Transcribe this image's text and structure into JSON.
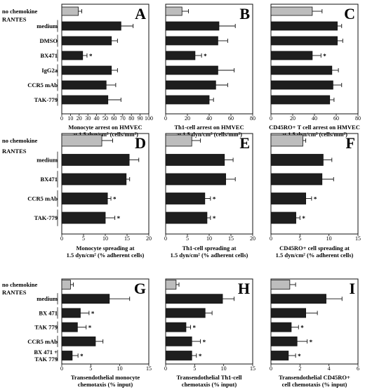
{
  "figure": {
    "colors": {
      "control_bar": "#bdbdbd",
      "treatment_bar": "#1e1e1e",
      "axis": "#111111"
    },
    "group_label": "RANTES",
    "rows": [
      {
        "categories": [
          "no chemokine",
          "medium",
          "DMSO",
          "BX471",
          "IgG2a",
          "CCR5 mAb",
          "TAK-779"
        ],
        "panels": [
          {
            "letter": "A",
            "xlim": [
              0,
              100
            ],
            "ticks": [
              "0",
              "10",
              "20",
              "30",
              "40",
              "50",
              "60",
              "70",
              "80",
              "90",
              "100"
            ],
            "xlabel": [
              "Monocyte arrest on HMVEC",
              "at 1.5 dyn/cm² (cells/mm²)"
            ]
          },
          {
            "letter": "B",
            "xlim": [
              0,
              80
            ],
            "ticks": [
              "0",
              "20",
              "40",
              "60",
              "80"
            ],
            "xlabel": [
              "Th1-cell arrest on HMVEC",
              "at 1.5 dyn/cm² (cells/mm²)"
            ]
          },
          {
            "letter": "C",
            "xlim": [
              0,
              80
            ],
            "ticks": [
              "0",
              "20",
              "40",
              "60",
              "80"
            ],
            "xlabel": [
              "CD45RO+ T cell arrest on HMVEC",
              "at 1.5 dyn/cm² (cells/mm²)"
            ]
          }
        ]
      },
      {
        "categories": [
          "no chemokine",
          "medium",
          "BX471",
          "CCR5 mAb",
          "TAK-779"
        ],
        "panels": [
          {
            "letter": "D",
            "xlim": [
              0,
              20
            ],
            "ticks": [
              "0",
              "5",
              "10",
              "15",
              "20"
            ],
            "xlabel": [
              "Monocyte spreading at",
              "1.5 dyn/cm² (% adherent cells)"
            ]
          },
          {
            "letter": "E",
            "xlim": [
              0,
              20
            ],
            "ticks": [
              "0",
              "5",
              "10",
              "15",
              "20"
            ],
            "xlabel": [
              "Th1-cell spreading at",
              "1.5 dyn/cm² (% adherent cells)"
            ]
          },
          {
            "letter": "F",
            "xlim": [
              0,
              15
            ],
            "ticks": [
              "0",
              "5",
              "10",
              "15"
            ],
            "xlabel": [
              "CD45RO+ cell spreading at",
              "1.5 dyn/cm² (% adherent cells)"
            ]
          }
        ]
      },
      {
        "categories": [
          "no chemokine",
          "medium",
          "BX 471",
          "TAK 779",
          "CCR5 mAb",
          "BX 471 +\nTAK 779"
        ],
        "panels": [
          {
            "letter": "G",
            "xlim": [
              0,
              15
            ],
            "ticks": [
              "0",
              "5",
              "10",
              "15"
            ],
            "xlabel": [
              "Transendothelial monocyte",
              "chemotaxis (% input)"
            ]
          },
          {
            "letter": "H",
            "xlim": [
              0,
              15
            ],
            "ticks": [
              "0",
              "5",
              "10",
              "15"
            ],
            "xlabel": [
              "Transendothelial Th1-cell",
              "chemotaxis (% input)"
            ]
          },
          {
            "letter": "I",
            "xlim": [
              0,
              6
            ],
            "ticks": [
              "0",
              "2",
              "4",
              "6"
            ],
            "xlabel": [
              "Transendothelial CD45RO+",
              "cell chemotaxis (% input)"
            ]
          }
        ]
      }
    ]
  },
  "chart_data": [
    {
      "type": "bar",
      "panel": "A",
      "categories": [
        "no chemokine",
        "medium",
        "DMSO",
        "BX471",
        "IgG2a",
        "CCR5 mAb",
        "TAK-779"
      ],
      "values": [
        19,
        68,
        57,
        24,
        57,
        51,
        53
      ],
      "errors": [
        4,
        14,
        7,
        5,
        7,
        11,
        15
      ],
      "significant": [
        false,
        false,
        false,
        true,
        false,
        false,
        false
      ],
      "xlabel": "Monocyte arrest on HMVEC at 1.5 dyn/cm² (cells/mm²)",
      "xlim": [
        0,
        100
      ]
    },
    {
      "type": "bar",
      "panel": "B",
      "categories": [
        "no chemokine",
        "medium",
        "DMSO",
        "BX471",
        "IgG2a",
        "CCR5 mAb",
        "TAK-779"
      ],
      "values": [
        15,
        49,
        48,
        27,
        48,
        46,
        40
      ],
      "errors": [
        6,
        15,
        9,
        6,
        15,
        11,
        4
      ],
      "significant": [
        false,
        false,
        false,
        true,
        false,
        false,
        false
      ],
      "xlabel": "Th1-cell arrest on HMVEC at 1.5 dyn/cm² (cells/mm²)",
      "xlim": [
        0,
        80
      ]
    },
    {
      "type": "bar",
      "panel": "C",
      "categories": [
        "no chemokine",
        "medium",
        "DMSO",
        "BX471",
        "IgG2a",
        "CCR5 mAb",
        "TAK-779"
      ],
      "values": [
        38,
        61,
        61,
        38,
        56,
        57,
        54
      ],
      "errors": [
        9,
        4,
        5,
        8,
        6,
        8,
        4
      ],
      "significant": [
        false,
        false,
        false,
        true,
        false,
        false,
        false
      ],
      "xlabel": "CD45RO+ T cell arrest on HMVEC at 1.5 dyn/cm² (cells/mm²)",
      "xlim": [
        0,
        80
      ]
    },
    {
      "type": "bar",
      "panel": "D",
      "categories": [
        "no chemokine",
        "medium",
        "BX471",
        "CCR5 mAb",
        "TAK-779"
      ],
      "values": [
        9.2,
        15.5,
        14.8,
        10.5,
        10.0
      ],
      "errors": [
        2.5,
        2.2,
        0.8,
        0.8,
        2.2
      ],
      "significant": [
        false,
        false,
        false,
        true,
        true
      ],
      "xlabel": "Monocyte spreading at 1.5 dyn/cm² (% adherent cells)",
      "xlim": [
        0,
        20
      ]
    },
    {
      "type": "bar",
      "panel": "E",
      "categories": [
        "no chemokine",
        "medium",
        "BX471",
        "CCR5 mAb",
        "TAK-779"
      ],
      "values": [
        6.0,
        13.5,
        13.8,
        9.0,
        9.5
      ],
      "errors": [
        2.0,
        2.0,
        2.2,
        1.3,
        0.8
      ],
      "significant": [
        false,
        false,
        false,
        true,
        true
      ],
      "xlabel": "Th1-cell spreading at 1.5 dyn/cm² (% adherent cells)",
      "xlim": [
        0,
        20
      ]
    },
    {
      "type": "bar",
      "panel": "F",
      "categories": [
        "no chemokine",
        "medium",
        "BX471",
        "CCR5 mAb",
        "TAK-779"
      ],
      "values": [
        5.5,
        9.0,
        8.8,
        6.0,
        4.3
      ],
      "errors": [
        0.5,
        1.5,
        2.0,
        1.0,
        0.7
      ],
      "significant": [
        false,
        false,
        false,
        true,
        true
      ],
      "xlabel": "CD45RO+ cell spreading at 1.5 dyn/cm² (% adherent cells)",
      "xlim": [
        0,
        15
      ]
    },
    {
      "type": "bar",
      "panel": "G",
      "categories": [
        "no chemokine",
        "medium",
        "BX 471",
        "TAK 779",
        "CCR5 mAb",
        "BX 471 + TAK 779"
      ],
      "values": [
        1.5,
        8.2,
        3.2,
        2.7,
        5.8,
        1.8
      ],
      "errors": [
        0.5,
        3.5,
        1.5,
        1.5,
        1.3,
        1.0
      ],
      "significant": [
        false,
        false,
        true,
        true,
        false,
        true
      ],
      "xlabel": "Transendothelial monocyte chemotaxis (% input)",
      "xlim": [
        0,
        15
      ]
    },
    {
      "type": "bar",
      "panel": "H",
      "categories": [
        "no chemokine",
        "medium",
        "BX 471",
        "TAK 779",
        "CCR5 mAb",
        "BX 471 + TAK 779"
      ],
      "values": [
        1.8,
        9.8,
        6.8,
        3.5,
        4.5,
        4.5
      ],
      "errors": [
        0.5,
        2.0,
        1.2,
        0.8,
        1.5,
        0.8
      ],
      "significant": [
        false,
        false,
        false,
        true,
        true,
        true
      ],
      "xlabel": "Transendothelial Th1-cell chemotaxis (% input)",
      "xlim": [
        0,
        15
      ]
    },
    {
      "type": "bar",
      "panel": "I",
      "categories": [
        "no chemokine",
        "medium",
        "BX 471",
        "TAK 779",
        "CCR5 mAb",
        "BX 471 + TAK 779"
      ],
      "values": [
        1.3,
        3.8,
        2.4,
        1.4,
        1.8,
        1.2
      ],
      "errors": [
        0.4,
        1.1,
        0.8,
        0.5,
        0.7,
        0.5
      ],
      "significant": [
        false,
        false,
        false,
        true,
        true,
        true
      ],
      "xlabel": "Transendothelial CD45RO+ cell chemotaxis (% input)",
      "xlim": [
        0,
        6
      ]
    }
  ]
}
